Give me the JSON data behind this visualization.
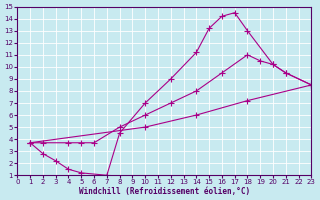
{
  "xlabel": "Windchill (Refroidissement éolien,°C)",
  "xlim": [
    0,
    23
  ],
  "ylim": [
    1,
    15
  ],
  "xticks": [
    0,
    1,
    2,
    3,
    4,
    5,
    6,
    7,
    8,
    9,
    10,
    11,
    12,
    13,
    14,
    15,
    16,
    17,
    18,
    19,
    20,
    21,
    22,
    23
  ],
  "yticks": [
    1,
    2,
    3,
    4,
    5,
    6,
    7,
    8,
    9,
    10,
    11,
    12,
    13,
    14,
    15
  ],
  "bg_color": "#c8eaf0",
  "line_color": "#aa0088",
  "grid_color": "#ffffff",
  "curve1_x": [
    1,
    10,
    14,
    18,
    23
  ],
  "curve1_y": [
    3.7,
    5.0,
    6.0,
    7.2,
    8.5
  ],
  "curve2_x": [
    1,
    2,
    3,
    4,
    5,
    7,
    8,
    10,
    12,
    14,
    15,
    16,
    17,
    18,
    20,
    21,
    23
  ],
  "curve2_y": [
    3.7,
    2.8,
    2.2,
    1.5,
    1.2,
    1.0,
    4.5,
    7.0,
    9.0,
    11.2,
    13.2,
    14.2,
    14.5,
    13.0,
    10.2,
    9.5,
    8.5
  ],
  "curve3_x": [
    1,
    2,
    4,
    5,
    6,
    8,
    10,
    12,
    14,
    16,
    18,
    19,
    20,
    21,
    23
  ],
  "curve3_y": [
    3.7,
    3.7,
    3.7,
    3.7,
    3.7,
    5.0,
    6.0,
    7.0,
    8.0,
    9.5,
    11.0,
    10.5,
    10.2,
    9.5,
    8.5
  ]
}
